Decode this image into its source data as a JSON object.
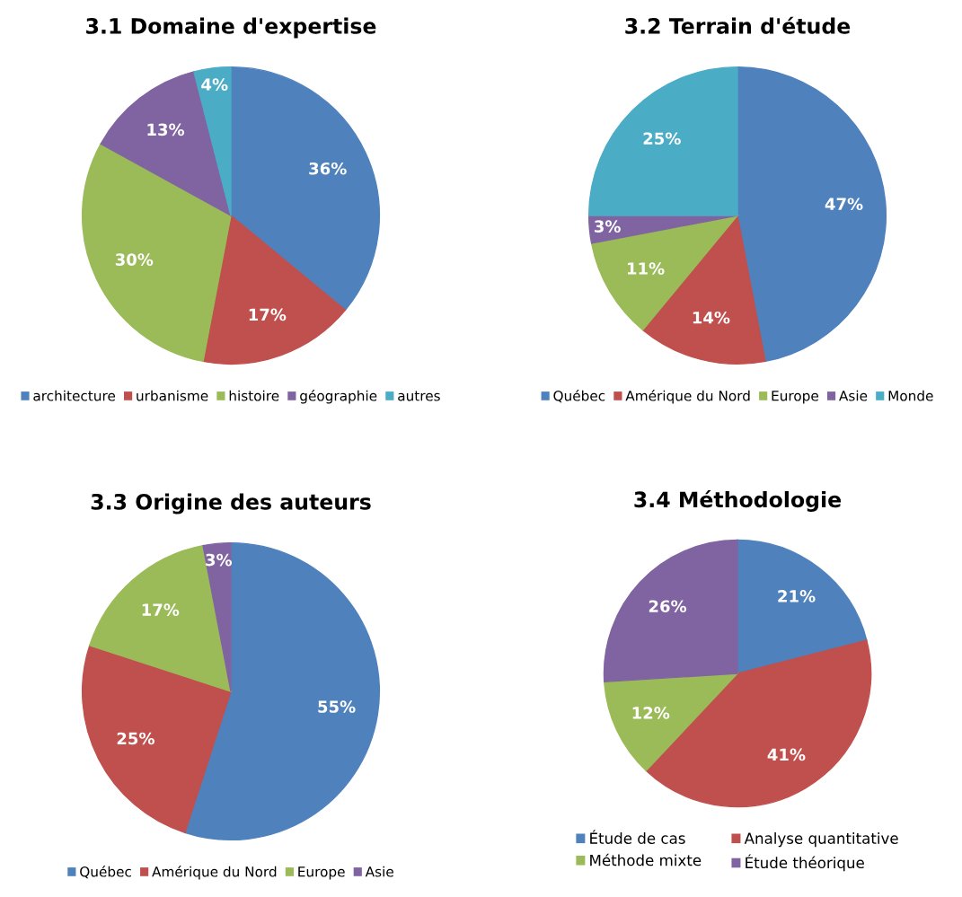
{
  "chart_data": [
    {
      "type": "pie",
      "title": "3.1 Domaine d'expertise",
      "categories": [
        "architecture",
        "urbanisme",
        "histoire",
        "géographie",
        "autres"
      ],
      "values": [
        36,
        17,
        30,
        13,
        4
      ],
      "value_labels": [
        "36%",
        "17%",
        "30%",
        "13%",
        "4%"
      ],
      "colors": [
        "#4f81bd",
        "#c0504d",
        "#9bbb59",
        "#8064a2",
        "#4bacc6"
      ],
      "legend": "bottom"
    },
    {
      "type": "pie",
      "title": "3.2 Terrain d'étude",
      "categories": [
        "Québec",
        "Amérique du Nord",
        "Europe",
        "Asie",
        "Monde"
      ],
      "values": [
        47,
        14,
        11,
        3,
        25
      ],
      "value_labels": [
        "47%",
        "14%",
        "11%",
        "3%",
        "25%"
      ],
      "colors": [
        "#4f81bd",
        "#c0504d",
        "#9bbb59",
        "#8064a2",
        "#4bacc6"
      ],
      "legend": "bottom"
    },
    {
      "type": "pie",
      "title": "3.3 Origine des auteurs",
      "categories": [
        "Québec",
        "Amérique du Nord",
        "Europe",
        "Asie"
      ],
      "values": [
        55,
        25,
        17,
        3
      ],
      "value_labels": [
        "55%",
        "25%",
        "17%",
        "3%"
      ],
      "colors": [
        "#4f81bd",
        "#c0504d",
        "#9bbb59",
        "#8064a2"
      ],
      "legend": "bottom"
    },
    {
      "type": "pie",
      "title": "3.4 Méthodologie",
      "categories": [
        "Étude de cas",
        "Analyse quantitative",
        "Méthode mixte",
        "Étude théorique"
      ],
      "values": [
        21,
        41,
        12,
        26
      ],
      "value_labels": [
        "21%",
        "41%",
        "12%",
        "26%"
      ],
      "colors": [
        "#4f81bd",
        "#c0504d",
        "#9bbb59",
        "#8064a2"
      ],
      "legend": "bottom"
    }
  ]
}
